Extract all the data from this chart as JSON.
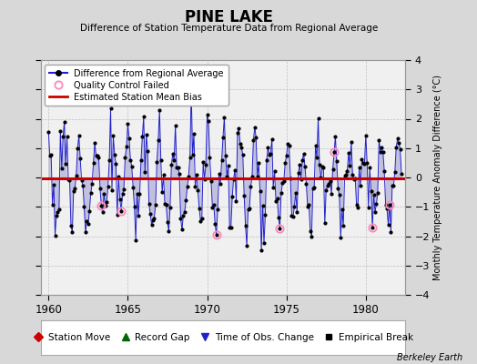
{
  "title": "PINE LAKE",
  "subtitle": "Difference of Station Temperature Data from Regional Average",
  "ylabel": "Monthly Temperature Anomaly Difference (°C)",
  "xlim": [
    1959.5,
    1982.5
  ],
  "ylim": [
    -4,
    4
  ],
  "yticks": [
    -4,
    -3,
    -2,
    -1,
    0,
    1,
    2,
    3,
    4
  ],
  "xticks": [
    1960,
    1965,
    1970,
    1975,
    1980
  ],
  "bias_value": -0.02,
  "bg_color": "#d8d8d8",
  "plot_bg_color": "#f0f0f0",
  "line_color": "#2222cc",
  "fill_color": "#8888cc",
  "bias_color": "#cc0000",
  "qc_color": "#ff88bb",
  "footer": "Berkeley Earth",
  "legend1_items": [
    "Difference from Regional Average",
    "Quality Control Failed",
    "Estimated Station Mean Bias"
  ],
  "legend2_items": [
    "Station Move",
    "Record Gap",
    "Time of Obs. Change",
    "Empirical Break"
  ],
  "qc_indices": [
    40,
    55,
    127,
    175,
    216,
    245,
    258
  ],
  "seed": 12
}
